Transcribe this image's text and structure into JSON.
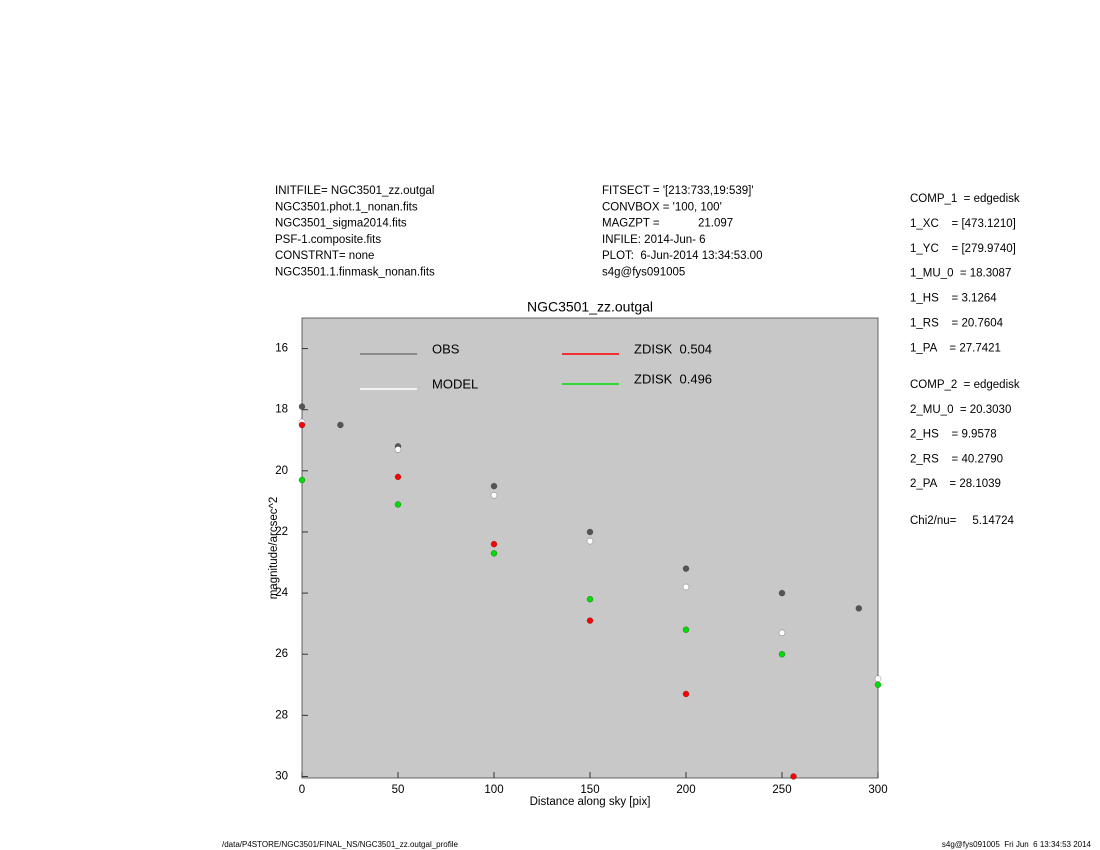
{
  "header": {
    "left": [
      "INITFILE= NGC3501_zz.outgal",
      "NGC3501.phot.1_nonan.fits",
      "NGC3501_sigma2014.fits",
      "PSF-1.composite.fits",
      "CONSTRNT= none",
      "NGC3501.1.finmask_nonan.fits"
    ],
    "middle": [
      "FITSECT = '[213:733,19:539]'",
      "CONVBOX = '100, 100'",
      "MAGZPT =            21.097",
      "INFILE: 2014-Jun- 6",
      "PLOT:  6-Jun-2014 13:34:53.00",
      "s4g@fys091005"
    ]
  },
  "sidebar": {
    "comp1": [
      "COMP_1  = edgedisk",
      "1_XC    = [473.1210]",
      "1_YC    = [279.9740]",
      "1_MU_0  = 18.3087",
      "1_HS    = 3.1264",
      "1_RS    = 20.7604",
      "1_PA    = 27.7421"
    ],
    "comp2": [
      "COMP_2  = edgedisk",
      "2_MU_0  = 20.3030",
      "2_HS    = 9.9578",
      "2_RS    = 40.2790",
      "2_PA    = 28.1039"
    ],
    "chi2": "Chi2/nu=     5.14724"
  },
  "footer": {
    "left": "/data/P4STORE/NGC3501/FINAL_NS/NGC3501_zz.outgal_profile",
    "right": "s4g@fys091005  Fri Jun  6 13:34:53 2014"
  },
  "chart_data": {
    "type": "scatter",
    "title": "NGC3501_zz.outgal",
    "x_label": "Distance along sky [pix]",
    "y_label": "magnitude/arcsec^2",
    "xlim": [
      0,
      300
    ],
    "xticks": [
      0,
      50,
      100,
      150,
      200,
      250,
      300
    ],
    "ylim": [
      30.05,
      15
    ],
    "yticks": [
      16,
      18,
      20,
      22,
      24,
      26,
      28,
      30
    ],
    "background": "#c8c8c8",
    "series": [
      {
        "name": "OBS",
        "color": "#555555",
        "x": [
          0,
          20,
          50,
          100,
          150,
          200,
          250,
          290
        ],
        "values": [
          17.9,
          18.5,
          19.2,
          20.5,
          22,
          23.2,
          24,
          24.5
        ]
      },
      {
        "name": "MODEL",
        "color": "#ffffff",
        "x": [
          0,
          50,
          100,
          150,
          200,
          250,
          300
        ],
        "values": [
          18.4,
          19.3,
          20.8,
          22.3,
          23.8,
          25.3,
          26.8
        ]
      },
      {
        "name": "ZDISK  0.504",
        "color": "#ff0000",
        "x": [
          0,
          50,
          100,
          150,
          200,
          256
        ],
        "values": [
          18.5,
          20.2,
          22.4,
          24.9,
          27.3,
          30
        ]
      },
      {
        "name": "ZDISK  0.496",
        "color": "#00dd00",
        "x": [
          0,
          50,
          100,
          150,
          200,
          250,
          300
        ],
        "values": [
          20.3,
          21.1,
          22.7,
          24.2,
          25.2,
          26,
          27
        ]
      }
    ]
  }
}
